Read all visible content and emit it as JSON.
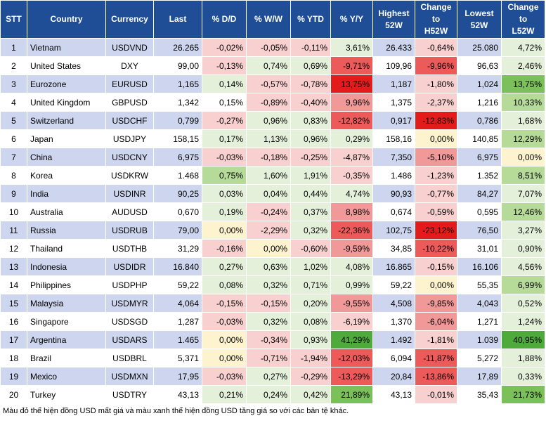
{
  "table": {
    "header": [
      "STT",
      "Country",
      "Currency",
      "Last",
      "% D/D",
      "% W/W",
      "% YTD",
      "% Y/Y",
      "Highest\n52W",
      "Change\nto\nH52W",
      "Lowest\n52W",
      "Change\nto\nL52W"
    ],
    "rows": [
      [
        "1",
        "Vietnam",
        "USDVND",
        "26.265",
        "-0,02%",
        "-0,05%",
        "-0,11%",
        "3,61%",
        "26.433",
        "-0,64%",
        "25.080",
        "4,72%"
      ],
      [
        "2",
        "United States",
        "DXY",
        "99,00",
        "-0,13%",
        "0,74%",
        "0,69%",
        "-9,71%",
        "109,96",
        "-9,96%",
        "96,63",
        "2,46%"
      ],
      [
        "3",
        "Eurozone",
        "EURUSD",
        "1,165",
        "0,14%",
        "-0,57%",
        "-0,78%",
        "13,75%",
        "1,187",
        "-1,80%",
        "1,024",
        "13,75%"
      ],
      [
        "4",
        "United Kingdom",
        "GBPUSD",
        "1,342",
        "0,15%",
        "-0,89%",
        "-0,40%",
        "9,96%",
        "1,375",
        "-2,37%",
        "1,216",
        "10,33%"
      ],
      [
        "5",
        "Switzerland",
        "USDCHF",
        "0,799",
        "-0,27%",
        "0,96%",
        "0,83%",
        "-12,82%",
        "0,917",
        "-12,83%",
        "0,786",
        "1,68%"
      ],
      [
        "6",
        "Japan",
        "USDJPY",
        "158,15",
        "0,17%",
        "1,13%",
        "0,96%",
        "0,29%",
        "158,16",
        "0,00%",
        "140,85",
        "12,29%"
      ],
      [
        "7",
        "China",
        "USDCNY",
        "6,975",
        "-0,03%",
        "-0,18%",
        "-0,25%",
        "-4,87%",
        "7,350",
        "-5,10%",
        "6,975",
        "0,00%"
      ],
      [
        "8",
        "Korea",
        "USDKRW",
        "1.468",
        "0,75%",
        "1,60%",
        "1,91%",
        "-0,35%",
        "1.486",
        "-1,23%",
        "1.352",
        "8,51%"
      ],
      [
        "9",
        "India",
        "USDINR",
        "90,25",
        "0,03%",
        "0,04%",
        "0,44%",
        "4,74%",
        "90,93",
        "-0,77%",
        "84,27",
        "7,07%"
      ],
      [
        "10",
        "Australia",
        "AUDUSD",
        "0,670",
        "0,19%",
        "-0,24%",
        "0,37%",
        "8,98%",
        "0,674",
        "-0,59%",
        "0,595",
        "12,46%"
      ],
      [
        "11",
        "Russia",
        "USDRUB",
        "79,00",
        "0,00%",
        "-2,29%",
        "0,32%",
        "-22,36%",
        "102,75",
        "-23,12%",
        "76,50",
        "3,27%"
      ],
      [
        "12",
        "Thailand",
        "USDTHB",
        "31,29",
        "-0,16%",
        "0,00%",
        "-0,60%",
        "-9,59%",
        "34,85",
        "-10,22%",
        "31,01",
        "0,90%"
      ],
      [
        "13",
        "Indonesia",
        "USDIDR",
        "16.840",
        "0,27%",
        "0,63%",
        "1,02%",
        "4,08%",
        "16.865",
        "-0,15%",
        "16.106",
        "4,56%"
      ],
      [
        "14",
        "Philippines",
        "USDPHP",
        "59,22",
        "0,08%",
        "0,32%",
        "0,71%",
        "0,99%",
        "59,22",
        "0,00%",
        "55,35",
        "6,99%"
      ],
      [
        "15",
        "Malaysia",
        "USDMYR",
        "4,064",
        "-0,15%",
        "-0,15%",
        "0,20%",
        "-9,55%",
        "4,508",
        "-9,85%",
        "4,043",
        "0,52%"
      ],
      [
        "16",
        "Singapore",
        "USDSGD",
        "1,287",
        "-0,03%",
        "0,32%",
        "0,08%",
        "-6,19%",
        "1,370",
        "-6,04%",
        "1,271",
        "1,24%"
      ],
      [
        "17",
        "Argentina",
        "USDARS",
        "1.465",
        "0,00%",
        "-0,34%",
        "0,93%",
        "41,29%",
        "1.492",
        "-1,81%",
        "1.039",
        "40,95%"
      ],
      [
        "18",
        "Brazil",
        "USDBRL",
        "5,371",
        "0,00%",
        "-0,71%",
        "-1,94%",
        "-12,03%",
        "6,094",
        "-11,87%",
        "5,272",
        "1,88%"
      ],
      [
        "19",
        "Mexico",
        "USDMXN",
        "17,95",
        "-0,03%",
        "0,27%",
        "-0,29%",
        "-13,29%",
        "20,84",
        "-13,86%",
        "17,89",
        "0,33%"
      ],
      [
        "20",
        "Turkey",
        "USDTRY",
        "43,13",
        "0,21%",
        "0,24%",
        "0,42%",
        "21,89%",
        "43,13",
        "-0,01%",
        "35,43",
        "21,73%"
      ]
    ]
  },
  "footer": "Màu đỏ thể hiện đồng USD mất giá và màu xanh thể hiện đồng USD tăng giá so với các bản tệ khác."
}
